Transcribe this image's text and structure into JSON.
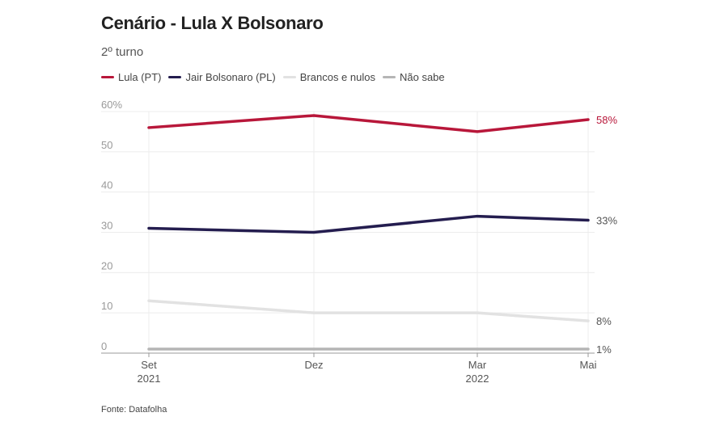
{
  "header": {
    "title": "Cenário - Lula X Bolsonaro",
    "subtitle": "2º turno"
  },
  "legend": [
    {
      "label": "Lula (PT)",
      "color": "#b8173a"
    },
    {
      "label": "Jair Bolsonaro (PL)",
      "color": "#241d4f"
    },
    {
      "label": "Brancos e nulos",
      "color": "#e2e2e2"
    },
    {
      "label": "Não sabe",
      "color": "#b5b5b5"
    }
  ],
  "footer": {
    "source": "Fonte: Datafolha"
  },
  "chart_data": {
    "type": "line",
    "categories": [
      "Set 2021",
      "Dez",
      "Mar 2022",
      "Mai"
    ],
    "x_tick_labels": [
      {
        "line1": "Set",
        "line2": "2021"
      },
      {
        "line1": "Dez",
        "line2": ""
      },
      {
        "line1": "Mar",
        "line2": "2022"
      },
      {
        "line1": "Mai",
        "line2": ""
      }
    ],
    "y_ticks": [
      "60%",
      "50",
      "40",
      "30",
      "20",
      "10",
      "0"
    ],
    "ylim": [
      0,
      60
    ],
    "grid": true,
    "legend_position": "top-left",
    "series": [
      {
        "name": "Lula (PT)",
        "values": [
          56,
          59,
          55,
          58
        ],
        "color": "#b8173a",
        "end_label": "58%"
      },
      {
        "name": "Jair Bolsonaro (PL)",
        "values": [
          31,
          30,
          34,
          33
        ],
        "color": "#241d4f",
        "end_label": "33%"
      },
      {
        "name": "Brancos e nulos",
        "values": [
          13,
          10,
          10,
          8
        ],
        "color": "#e2e2e2",
        "end_label": "8%"
      },
      {
        "name": "Não sabe",
        "values": [
          1,
          1,
          1,
          1
        ],
        "color": "#b5b5b5",
        "end_label": "1%"
      }
    ]
  }
}
